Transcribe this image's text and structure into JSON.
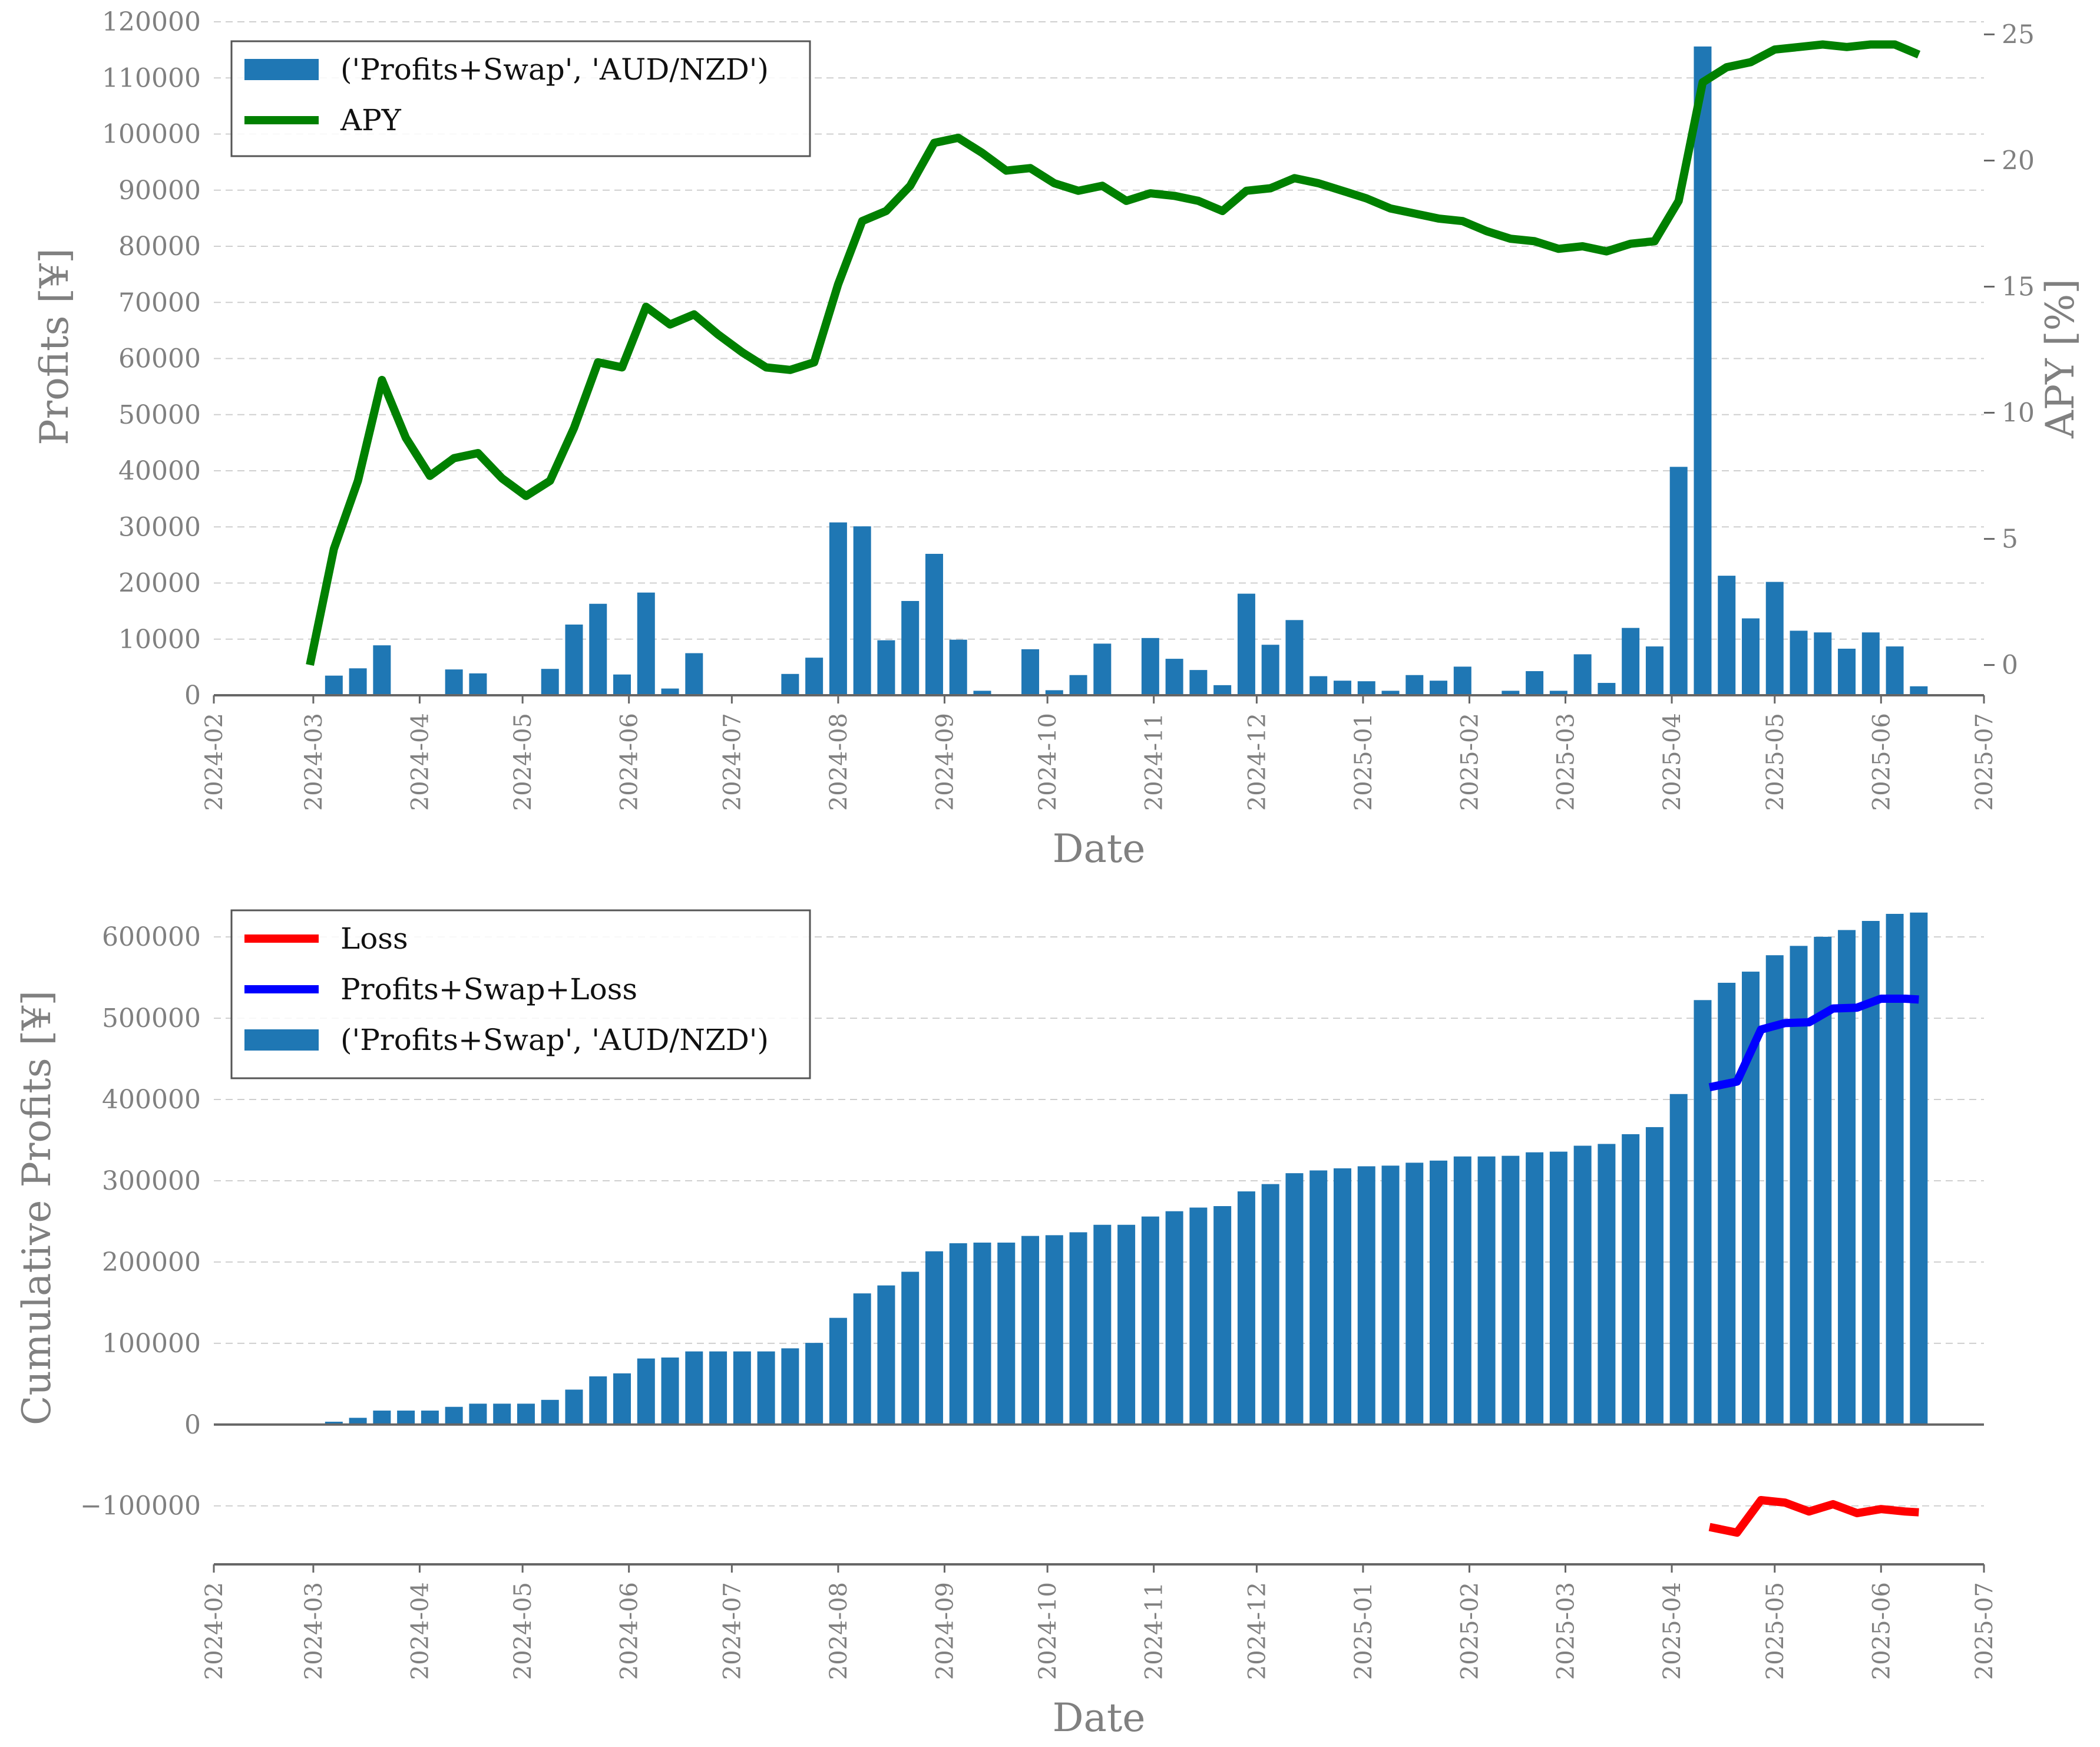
{
  "chart_data": [
    {
      "type": "bar",
      "title": "",
      "xlabel": "Date",
      "ylabel": "Profits [¥]",
      "y2label": "APY [%]",
      "xlim": [
        "2024-02",
        "2025-07"
      ],
      "ylim": [
        0,
        120000
      ],
      "y2lim": [
        -1.2,
        25.5
      ],
      "grid": true,
      "legend_position": "top-left",
      "x_tick_labels": [
        "2024-02",
        "2024-03",
        "2024-04",
        "2024-05",
        "2024-06",
        "2024-07",
        "2024-08",
        "2024-09",
        "2024-10",
        "2024-11",
        "2024-12",
        "2025-01",
        "2025-02",
        "2025-03",
        "2025-04",
        "2025-05",
        "2025-06",
        "2025-07"
      ],
      "y_tick_labels": [
        "0",
        "10000",
        "20000",
        "30000",
        "40000",
        "50000",
        "60000",
        "70000",
        "80000",
        "90000",
        "100000",
        "110000",
        "120000"
      ],
      "y2_tick_labels": [
        "0",
        "5",
        "10",
        "15",
        "20",
        "25"
      ],
      "series": [
        {
          "name": "('Profits+Swap', 'AUD/NZD')",
          "type": "bar",
          "color": "#1f77b4",
          "x": [
            "2024-02-29",
            "2024-03-07",
            "2024-03-14",
            "2024-03-21",
            "2024-03-28",
            "2024-04-04",
            "2024-04-11",
            "2024-04-18",
            "2024-04-25",
            "2024-05-02",
            "2024-05-09",
            "2024-05-16",
            "2024-05-23",
            "2024-05-30",
            "2024-06-06",
            "2024-06-13",
            "2024-06-20",
            "2024-06-27",
            "2024-07-04",
            "2024-07-11",
            "2024-07-18",
            "2024-07-25",
            "2024-08-01",
            "2024-08-08",
            "2024-08-15",
            "2024-08-22",
            "2024-08-29",
            "2024-09-05",
            "2024-09-12",
            "2024-09-19",
            "2024-09-26",
            "2024-10-03",
            "2024-10-10",
            "2024-10-17",
            "2024-10-24",
            "2024-10-31",
            "2024-11-07",
            "2024-11-14",
            "2024-11-21",
            "2024-11-28",
            "2024-12-05",
            "2024-12-12",
            "2024-12-19",
            "2024-12-26",
            "2025-01-02",
            "2025-01-09",
            "2025-01-16",
            "2025-01-23",
            "2025-01-30",
            "2025-02-06",
            "2025-02-13",
            "2025-02-20",
            "2025-02-27",
            "2025-03-06",
            "2025-03-13",
            "2025-03-20",
            "2025-03-27",
            "2025-04-03",
            "2025-04-10",
            "2025-04-17",
            "2025-04-24",
            "2025-05-01",
            "2025-05-08",
            "2025-05-15",
            "2025-05-22",
            "2025-05-29",
            "2025-06-05",
            "2025-06-12"
          ],
          "values": [
            0,
            3500,
            4800,
            8900,
            0,
            0,
            4600,
            3900,
            0,
            0,
            4700,
            12600,
            16300,
            3700,
            18300,
            1200,
            7500,
            0,
            0,
            0,
            3800,
            6700,
            30800,
            30100,
            9800,
            16800,
            25200,
            9900,
            800,
            0,
            8200,
            900,
            3600,
            9200,
            0,
            10200,
            6500,
            4500,
            1800,
            18100,
            9000,
            13400,
            3400,
            2600,
            2500,
            800,
            3600,
            2600,
            5100,
            0,
            800,
            4300,
            800,
            7300,
            2200,
            12000,
            8700,
            40700,
            115600,
            21300,
            13700,
            20200,
            11500,
            11200,
            8300,
            11200,
            8700,
            1600
          ]
        },
        {
          "name": "APY",
          "type": "line",
          "color": "#008000",
          "x": [
            "2024-02-29",
            "2024-03-07",
            "2024-03-14",
            "2024-03-21",
            "2024-03-28",
            "2024-04-04",
            "2024-04-11",
            "2024-04-18",
            "2024-04-25",
            "2024-05-02",
            "2024-05-09",
            "2024-05-16",
            "2024-05-23",
            "2024-05-30",
            "2024-06-06",
            "2024-06-13",
            "2024-06-20",
            "2024-06-27",
            "2024-07-04",
            "2024-07-11",
            "2024-07-18",
            "2024-07-25",
            "2024-08-01",
            "2024-08-08",
            "2024-08-15",
            "2024-08-22",
            "2024-08-29",
            "2024-09-05",
            "2024-09-12",
            "2024-09-19",
            "2024-09-26",
            "2024-10-03",
            "2024-10-10",
            "2024-10-17",
            "2024-10-24",
            "2024-10-31",
            "2024-11-07",
            "2024-11-14",
            "2024-11-21",
            "2024-11-28",
            "2024-12-05",
            "2024-12-12",
            "2024-12-19",
            "2024-12-26",
            "2025-01-02",
            "2025-01-09",
            "2025-01-16",
            "2025-01-23",
            "2025-01-30",
            "2025-02-06",
            "2025-02-13",
            "2025-02-20",
            "2025-02-27",
            "2025-03-06",
            "2025-03-13",
            "2025-03-20",
            "2025-03-27",
            "2025-04-03",
            "2025-04-10",
            "2025-04-17",
            "2025-04-24",
            "2025-05-01",
            "2025-05-08",
            "2025-05-15",
            "2025-05-22",
            "2025-05-29",
            "2025-06-05",
            "2025-06-12"
          ],
          "values": [
            0,
            4.6,
            7.3,
            11.3,
            9,
            7.5,
            8.2,
            8.4,
            7.4,
            6.7,
            7.3,
            9.4,
            12,
            11.8,
            14.2,
            13.5,
            13.9,
            13.1,
            12.4,
            11.8,
            11.7,
            12,
            15.1,
            17.6,
            18,
            19,
            20.7,
            20.9,
            20.3,
            19.6,
            19.7,
            19.1,
            18.8,
            19,
            18.4,
            18.7,
            18.6,
            18.4,
            18,
            18.8,
            18.9,
            19.3,
            19.1,
            18.8,
            18.5,
            18.1,
            17.9,
            17.7,
            17.6,
            17.2,
            16.9,
            16.8,
            16.5,
            16.6,
            16.4,
            16.7,
            16.8,
            18.4,
            23.1,
            23.7,
            23.9,
            24.4,
            24.5,
            24.6,
            24.5,
            24.6,
            24.6,
            24.2
          ]
        }
      ]
    },
    {
      "type": "bar",
      "title": "",
      "xlabel": "Date",
      "ylabel": "Cumulative Profits [¥]",
      "xlim": [
        "2024-02",
        "2025-07"
      ],
      "ylim": [
        -172000,
        640000
      ],
      "grid": true,
      "legend_position": "top-left",
      "x_tick_labels": [
        "2024-02",
        "2024-03",
        "2024-04",
        "2024-05",
        "2024-06",
        "2024-07",
        "2024-08",
        "2024-09",
        "2024-10",
        "2024-11",
        "2024-12",
        "2025-01",
        "2025-02",
        "2025-03",
        "2025-04",
        "2025-05",
        "2025-06",
        "2025-07"
      ],
      "y_tick_labels": [
        "−100000",
        "0",
        "100000",
        "200000",
        "300000",
        "400000",
        "500000",
        "600000"
      ],
      "series": [
        {
          "name": "Loss",
          "type": "line",
          "color": "#ff0000",
          "x": [
            "2025-04-12",
            "2025-04-20",
            "2025-04-27",
            "2025-05-04",
            "2025-05-11",
            "2025-05-18",
            "2025-05-25",
            "2025-06-01",
            "2025-06-08",
            "2025-06-12"
          ],
          "values": [
            -126000,
            -133000,
            -93000,
            -96000,
            -107000,
            -98000,
            -109000,
            -104000,
            -107000,
            -108000
          ]
        },
        {
          "name": "Profits+Swap+Loss",
          "type": "line",
          "color": "#0000ff",
          "x": [
            "2025-04-12",
            "2025-04-20",
            "2025-04-27",
            "2025-05-04",
            "2025-05-11",
            "2025-05-18",
            "2025-05-25",
            "2025-06-01",
            "2025-06-08",
            "2025-06-12"
          ],
          "values": [
            415000,
            422000,
            486000,
            494000,
            495000,
            512000,
            513000,
            524000,
            524000,
            523000
          ]
        },
        {
          "name": "('Profits+Swap', 'AUD/NZD')",
          "type": "bar",
          "color": "#1f77b4",
          "x": [
            "2024-02-29",
            "2024-03-07",
            "2024-03-14",
            "2024-03-21",
            "2024-03-28",
            "2024-04-04",
            "2024-04-11",
            "2024-04-18",
            "2024-04-25",
            "2024-05-02",
            "2024-05-09",
            "2024-05-16",
            "2024-05-23",
            "2024-05-30",
            "2024-06-06",
            "2024-06-13",
            "2024-06-20",
            "2024-06-27",
            "2024-07-04",
            "2024-07-11",
            "2024-07-18",
            "2024-07-25",
            "2024-08-01",
            "2024-08-08",
            "2024-08-15",
            "2024-08-22",
            "2024-08-29",
            "2024-09-05",
            "2024-09-12",
            "2024-09-19",
            "2024-09-26",
            "2024-10-03",
            "2024-10-10",
            "2024-10-17",
            "2024-10-24",
            "2024-10-31",
            "2024-11-07",
            "2024-11-14",
            "2024-11-21",
            "2024-11-28",
            "2024-12-05",
            "2024-12-12",
            "2024-12-19",
            "2024-12-26",
            "2025-01-02",
            "2025-01-09",
            "2025-01-16",
            "2025-01-23",
            "2025-01-30",
            "2025-02-06",
            "2025-02-13",
            "2025-02-20",
            "2025-02-27",
            "2025-03-06",
            "2025-03-13",
            "2025-03-20",
            "2025-03-27",
            "2025-04-03",
            "2025-04-10",
            "2025-04-17",
            "2025-04-24",
            "2025-05-01",
            "2025-05-08",
            "2025-05-15",
            "2025-05-22",
            "2025-05-29",
            "2025-06-05",
            "2025-06-12"
          ],
          "values": [
            0,
            3500,
            8300,
            17200,
            17200,
            17200,
            21800,
            25700,
            25700,
            25700,
            30400,
            43000,
            59300,
            63000,
            81300,
            82500,
            90000,
            90000,
            90000,
            90000,
            93800,
            100500,
            131300,
            161400,
            171200,
            188000,
            213200,
            223100,
            223900,
            223900,
            232100,
            233000,
            236600,
            245800,
            245800,
            256000,
            262500,
            267000,
            268800,
            286900,
            295900,
            309300,
            312700,
            315300,
            317800,
            318600,
            322200,
            324800,
            329900,
            329900,
            330700,
            335000,
            335800,
            343100,
            345300,
            357300,
            366000,
            406700,
            522300,
            543600,
            557300,
            577500,
            589000,
            600200,
            608500,
            619700,
            628400,
            630000
          ]
        }
      ]
    }
  ]
}
